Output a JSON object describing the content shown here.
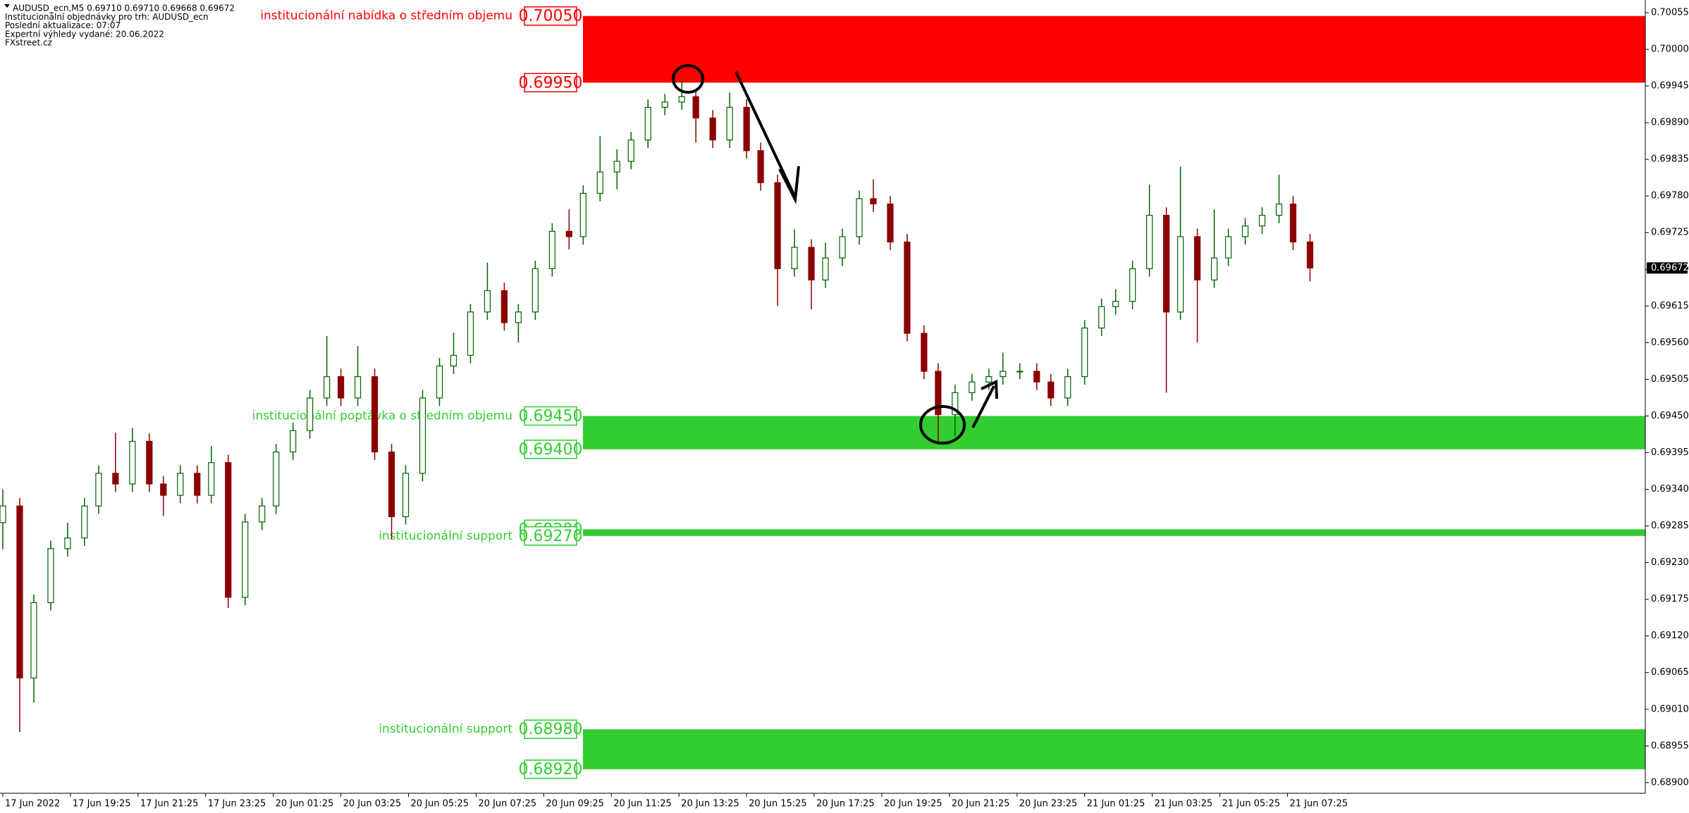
{
  "chart_data": {
    "type": "candlestick",
    "info_lines": [
      "AUDUSD_ecn,M5  0.69710 0.69710 0.69668 0.69672",
      "Institucionální objednávky pro trh: AUDUSD_ecn",
      "Poslední aktualizace: 07:07",
      "Expertní výhledy vydané: 20.06.2022",
      "FXstreet.cz"
    ],
    "up_color": "#006400",
    "down_color": "#8b0000",
    "xlim": [
      -1,
      583
    ],
    "ylim": [
      0.68884,
      0.70074
    ],
    "xticks": [
      {
        "value": 0,
        "label": "17 Jun 2022"
      },
      {
        "value": 24,
        "label": "17 Jun 19:25"
      },
      {
        "value": 48,
        "label": "17 Jun 21:25"
      },
      {
        "value": 72,
        "label": "17 Jun 23:25"
      },
      {
        "value": 96,
        "label": "20 Jun 01:25"
      },
      {
        "value": 120,
        "label": "20 Jun 03:25"
      },
      {
        "value": 144,
        "label": "20 Jun 05:25"
      },
      {
        "value": 168,
        "label": "20 Jun 07:25"
      },
      {
        "value": 192,
        "label": "20 Jun 09:25"
      },
      {
        "value": 216,
        "label": "20 Jun 11:25"
      },
      {
        "value": 240,
        "label": "20 Jun 13:25"
      },
      {
        "value": 264,
        "label": "20 Jun 15:25"
      },
      {
        "value": 288,
        "label": "20 Jun 17:25"
      },
      {
        "value": 312,
        "label": "20 Jun 19:25"
      },
      {
        "value": 336,
        "label": "20 Jun 21:25"
      },
      {
        "value": 360,
        "label": "20 Jun 23:25"
      },
      {
        "value": 384,
        "label": "21 Jun 01:25"
      },
      {
        "value": 408,
        "label": "21 Jun 03:25"
      },
      {
        "value": 432,
        "label": "21 Jun 05:25"
      },
      {
        "value": 456,
        "label": "21 Jun 07:25"
      }
    ],
    "yticks": [
      {
        "value": 0.70055,
        "label": "0.70055"
      },
      {
        "value": 0.7,
        "label": "0.70000"
      },
      {
        "value": 0.69945,
        "label": "0.69945"
      },
      {
        "value": 0.6989,
        "label": "0.69890"
      },
      {
        "value": 0.69835,
        "label": "0.69835"
      },
      {
        "value": 0.6978,
        "label": "0.69780"
      },
      {
        "value": 0.69725,
        "label": "0.69725"
      },
      {
        "value": 0.6967,
        "label": "0.69670"
      },
      {
        "value": 0.69615,
        "label": "0.69615"
      },
      {
        "value": 0.6956,
        "label": "0.69560"
      },
      {
        "value": 0.69505,
        "label": "0.69505"
      },
      {
        "value": 0.6945,
        "label": "0.69450"
      },
      {
        "value": 0.69395,
        "label": "0.69395"
      },
      {
        "value": 0.6934,
        "label": "0.69340"
      },
      {
        "value": 0.69285,
        "label": "0.69285"
      },
      {
        "value": 0.6923,
        "label": "0.69230"
      },
      {
        "value": 0.69175,
        "label": "0.69175"
      },
      {
        "value": 0.6912,
        "label": "0.69120"
      },
      {
        "value": 0.69065,
        "label": "0.69065"
      },
      {
        "value": 0.6901,
        "label": "0.69010"
      },
      {
        "value": 0.68955,
        "label": "0.68955"
      },
      {
        "value": 0.689,
        "label": "0.68900"
      }
    ],
    "last_price": {
      "value": 0.69672,
      "label": "0.69672"
    },
    "zones": [
      {
        "name": "institucionální nabídka o středním objemu",
        "color": "#ff0000",
        "high": {
          "value": 0.7005,
          "label": "0.70050"
        },
        "low": {
          "value": 0.6995,
          "label": "0.69950"
        }
      },
      {
        "name": "institucionální poptávka o středním objemu",
        "color": "#32cd32",
        "high": {
          "value": 0.6945,
          "label": "0.69450"
        },
        "low": {
          "value": 0.694,
          "label": "0.69400"
        }
      },
      {
        "name": "institucionální support",
        "color": "#32cd32",
        "high": {
          "value": 0.6928,
          "label": "0.69280"
        },
        "low": {
          "value": 0.6927,
          "label": "0.69270"
        }
      },
      {
        "name": "institucionální support",
        "color": "#32cd32",
        "high": {
          "value": 0.6898,
          "label": "0.68980"
        },
        "low": {
          "value": 0.6892,
          "label": "0.68920"
        }
      }
    ],
    "x": [
      0,
      6,
      11,
      17,
      23,
      29,
      34,
      40,
      46,
      52,
      57,
      63,
      69,
      74,
      80,
      86,
      92,
      97,
      103,
      109,
      115,
      120,
      126,
      132,
      138,
      143,
      149,
      155,
      160,
      166,
      172,
      178,
      183,
      189,
      195,
      201,
      206,
      212,
      218,
      223,
      229,
      235,
      241,
      246,
      252,
      258,
      264,
      269,
      275,
      281,
      287,
      292,
      298,
      304,
      309,
      315,
      321,
      327,
      332,
      338,
      344,
      350,
      355,
      361,
      367,
      372,
      378,
      384,
      390,
      395,
      401,
      407,
      413,
      418,
      424,
      430,
      435,
      441,
      447,
      453,
      458,
      464
    ],
    "open": [
      0.6929,
      0.69315,
      0.69057,
      0.6917,
      0.69251,
      0.69267,
      0.69315,
      0.69364,
      0.69348,
      0.69412,
      0.69348,
      0.69331,
      0.69364,
      0.69331,
      0.6938,
      0.69178,
      0.69291,
      0.69315,
      0.69396,
      0.69428,
      0.69477,
      0.69509,
      0.69477,
      0.69509,
      0.69396,
      0.69299,
      0.69364,
      0.69477,
      0.69525,
      0.69541,
      0.69606,
      0.69638,
      0.6959,
      0.69606,
      0.69671,
      0.69727,
      0.69719,
      0.69784,
      0.69816,
      0.69832,
      0.69864,
      0.69913,
      0.69921,
      0.69929,
      0.69897,
      0.69864,
      0.69913,
      0.69848,
      0.698,
      0.69671,
      0.69703,
      0.69654,
      0.69687,
      0.69719,
      0.69776,
      0.69768,
      0.69711,
      0.69574,
      0.69517,
      0.69452,
      0.69485,
      0.69501,
      0.69509,
      0.69517,
      0.69517,
      0.69501,
      0.69477,
      0.69509,
      0.69582,
      0.69614,
      0.69622,
      0.69671,
      0.69751,
      0.69606,
      0.69719,
      0.69654,
      0.69687,
      0.69719,
      0.69735,
      0.69751,
      0.69768,
      0.69711
    ],
    "high": [
      0.6934,
      0.69327,
      0.69182,
      0.69263,
      0.6929,
      0.69327,
      0.69376,
      0.69425,
      0.69432,
      0.69424,
      0.6936,
      0.69376,
      0.69376,
      0.69405,
      0.69392,
      0.69303,
      0.69327,
      0.69408,
      0.6944,
      0.69489,
      0.6957,
      0.69521,
      0.69555,
      0.69521,
      0.69408,
      0.69376,
      0.69489,
      0.69537,
      0.69575,
      0.69618,
      0.6968,
      0.6965,
      0.69618,
      0.69683,
      0.69739,
      0.6976,
      0.69796,
      0.6987,
      0.6985,
      0.69876,
      0.69925,
      0.69933,
      0.69953,
      0.69941,
      0.69909,
      0.69935,
      0.69925,
      0.6986,
      0.69812,
      0.6973,
      0.69715,
      0.6971,
      0.69731,
      0.69788,
      0.69805,
      0.6978,
      0.69723,
      0.69586,
      0.69529,
      0.69497,
      0.69513,
      0.69521,
      0.69545,
      0.69529,
      0.69529,
      0.69513,
      0.69521,
      0.69594,
      0.69626,
      0.6964,
      0.69683,
      0.69797,
      0.69763,
      0.69824,
      0.69731,
      0.6976,
      0.69731,
      0.69747,
      0.69763,
      0.69812,
      0.6978,
      0.69723
    ],
    "low": [
      0.6925,
      0.68976,
      0.6902,
      0.69158,
      0.69239,
      0.69255,
      0.69303,
      0.69336,
      0.69336,
      0.69336,
      0.693,
      0.69319,
      0.69319,
      0.69319,
      0.69162,
      0.69166,
      0.69279,
      0.69303,
      0.69384,
      0.69416,
      0.69465,
      0.69465,
      0.69465,
      0.69384,
      0.69265,
      0.69287,
      0.69352,
      0.69465,
      0.69513,
      0.69529,
      0.69594,
      0.69578,
      0.6956,
      0.69594,
      0.69659,
      0.697,
      0.69707,
      0.69772,
      0.6979,
      0.6982,
      0.69852,
      0.69901,
      0.69909,
      0.6986,
      0.69852,
      0.69852,
      0.69836,
      0.69788,
      0.69615,
      0.69659,
      0.6961,
      0.69642,
      0.69675,
      0.69707,
      0.69756,
      0.69699,
      0.69562,
      0.69505,
      0.69412,
      0.6942,
      0.69473,
      0.69489,
      0.69497,
      0.69505,
      0.69489,
      0.69465,
      0.69465,
      0.69497,
      0.6957,
      0.69602,
      0.6961,
      0.69659,
      0.69485,
      0.69594,
      0.6956,
      0.69642,
      0.69675,
      0.69707,
      0.69723,
      0.69739,
      0.69699,
      0.69652
    ],
    "close": [
      0.69315,
      0.69057,
      0.6917,
      0.69251,
      0.69267,
      0.69315,
      0.69364,
      0.69348,
      0.69412,
      0.69348,
      0.69331,
      0.69364,
      0.69331,
      0.6938,
      0.69178,
      0.69291,
      0.69315,
      0.69396,
      0.69428,
      0.69477,
      0.69509,
      0.69477,
      0.69509,
      0.69396,
      0.69299,
      0.69364,
      0.69477,
      0.69525,
      0.69541,
      0.69606,
      0.69638,
      0.6959,
      0.69606,
      0.69671,
      0.69727,
      0.69719,
      0.69784,
      0.69816,
      0.69832,
      0.69864,
      0.69913,
      0.69921,
      0.69929,
      0.69897,
      0.69864,
      0.69913,
      0.69848,
      0.698,
      0.69671,
      0.69703,
      0.69654,
      0.69687,
      0.69719,
      0.69776,
      0.69768,
      0.69711,
      0.69574,
      0.69517,
      0.69452,
      0.69485,
      0.69501,
      0.69509,
      0.69517,
      0.69517,
      0.69501,
      0.69477,
      0.69509,
      0.69582,
      0.69614,
      0.69622,
      0.69671,
      0.69751,
      0.69606,
      0.69719,
      0.69654,
      0.69687,
      0.69719,
      0.69735,
      0.69751,
      0.69768,
      0.69711,
      0.69672
    ]
  }
}
